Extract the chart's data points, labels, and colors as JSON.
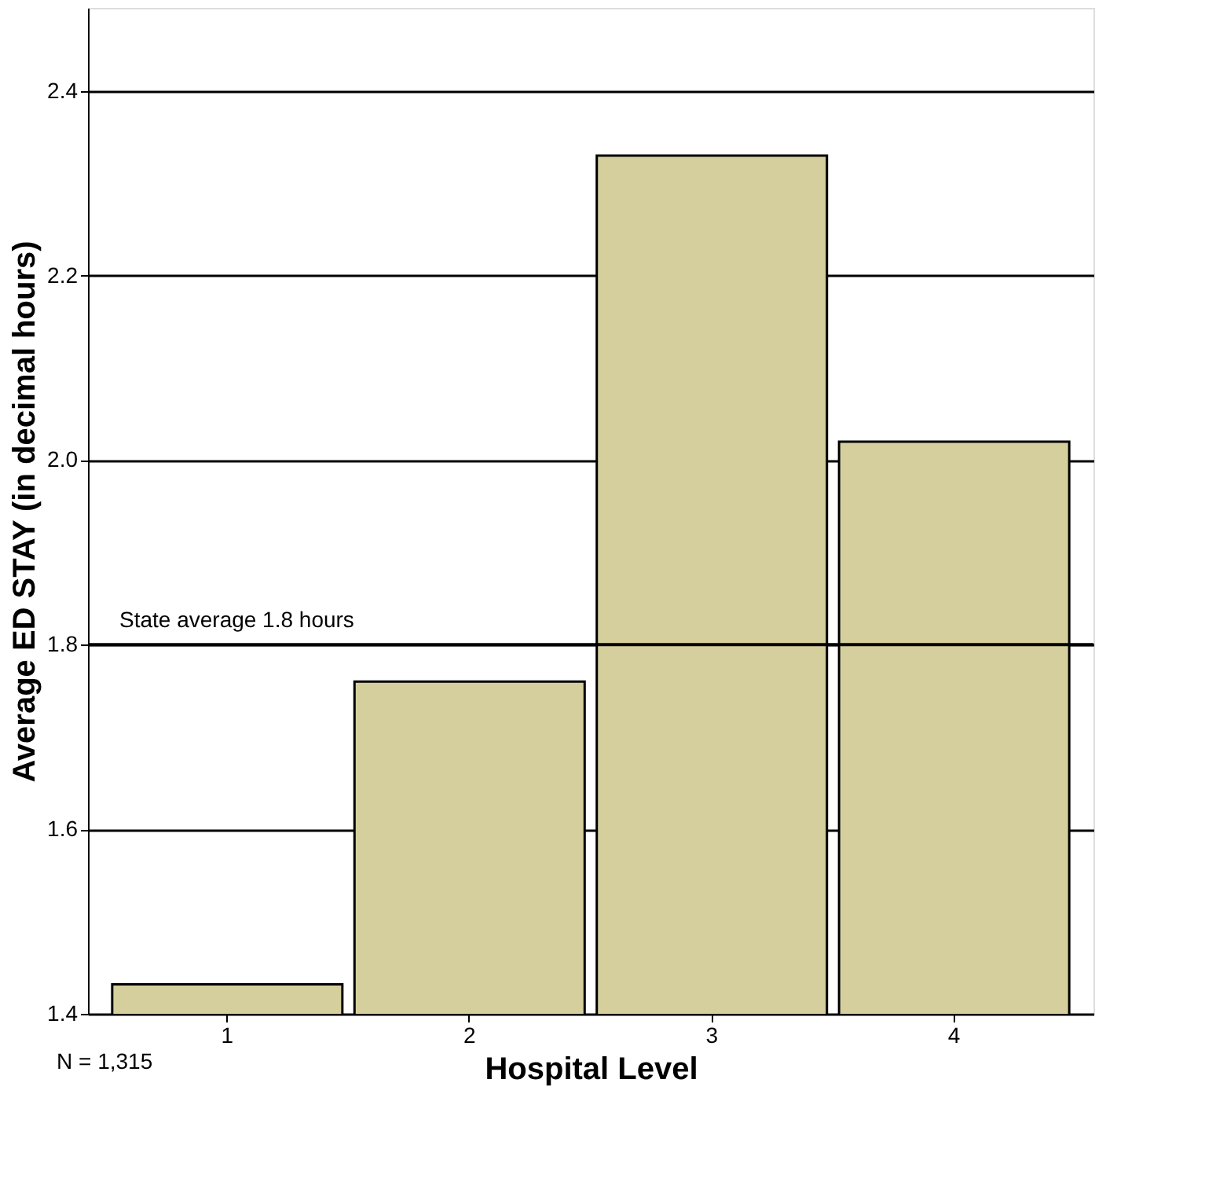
{
  "chart_data": {
    "type": "bar",
    "categories": [
      "1",
      "2",
      "3",
      "4"
    ],
    "values": [
      1.432,
      1.76,
      2.33,
      2.02
    ],
    "color": "#d4cf9c",
    "xlabel": "Hospital Level",
    "ylabel": "Average ED STAY (in decimal hours)",
    "ylim": [
      1.4,
      2.49
    ],
    "yticks": [
      1.4,
      1.6,
      1.8,
      {
        "value": 2.0,
        "label": "2.0"
      },
      2.2,
      2.4
    ],
    "grid": "y",
    "ref_lines": [
      {
        "axis": "y",
        "value": 1.8,
        "label": "State average 1.8 hours"
      }
    ],
    "annotations": [
      "N = 1,315"
    ]
  }
}
